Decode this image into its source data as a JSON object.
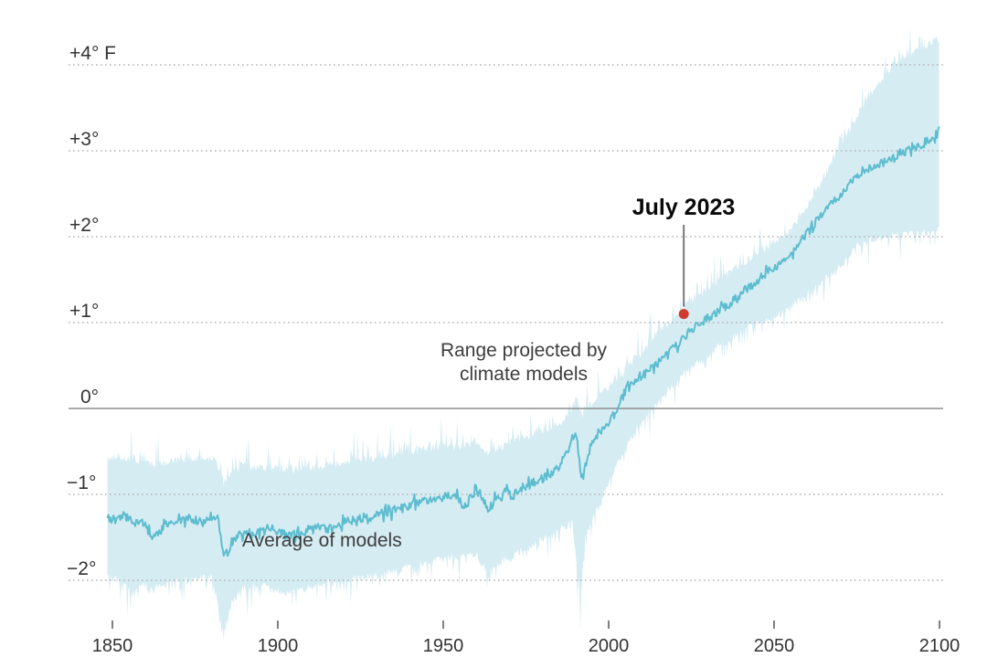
{
  "chart_data": {
    "type": "area",
    "title": "",
    "description": "Global temperature anomaly, observed July 2023 versus climate model projections, 1850-2100",
    "x_domain": [
      1848.5,
      2100
    ],
    "x_ticks": [
      {
        "value": 1850,
        "label": "1850"
      },
      {
        "value": 1900,
        "label": "1900"
      },
      {
        "value": 1950,
        "label": "1950"
      },
      {
        "value": 2000,
        "label": "2000"
      },
      {
        "value": 2050,
        "label": "2050"
      },
      {
        "value": 2100,
        "label": "2100"
      }
    ],
    "y_gridlines": [
      {
        "value": 4,
        "label": "+4° F",
        "style": "dotted"
      },
      {
        "value": 3,
        "label": "+3°",
        "style": "dotted"
      },
      {
        "value": 2,
        "label": "+2°",
        "style": "dotted"
      },
      {
        "value": 1,
        "label": "+1°",
        "style": "dotted"
      },
      {
        "value": 0,
        "label": "0°",
        "style": "solid"
      },
      {
        "value": -1,
        "label": "−1°",
        "style": "dotted"
      },
      {
        "value": -2,
        "label": "−2°",
        "style": "dotted"
      }
    ],
    "series": [
      {
        "name": "Average of models",
        "keypoints": [
          [
            1848.5,
            -1.28
          ],
          [
            1851,
            -1.3
          ],
          [
            1854,
            -1.26
          ],
          [
            1857,
            -1.33
          ],
          [
            1860,
            -1.36
          ],
          [
            1862,
            -1.52
          ],
          [
            1864,
            -1.44
          ],
          [
            1867,
            -1.33
          ],
          [
            1870,
            -1.3
          ],
          [
            1873,
            -1.27
          ],
          [
            1876,
            -1.31
          ],
          [
            1879,
            -1.28
          ],
          [
            1882,
            -1.31
          ],
          [
            1883.7,
            -1.74
          ],
          [
            1885,
            -1.66
          ],
          [
            1887,
            -1.5
          ],
          [
            1890,
            -1.43
          ],
          [
            1893,
            -1.47
          ],
          [
            1896,
            -1.39
          ],
          [
            1900,
            -1.42
          ],
          [
            1903,
            -1.49
          ],
          [
            1906,
            -1.45
          ],
          [
            1910,
            -1.42
          ],
          [
            1913,
            -1.37
          ],
          [
            1916,
            -1.41
          ],
          [
            1920,
            -1.33
          ],
          [
            1924,
            -1.29
          ],
          [
            1928,
            -1.25
          ],
          [
            1932,
            -1.21
          ],
          [
            1936,
            -1.19
          ],
          [
            1940,
            -1.12
          ],
          [
            1944,
            -1.08
          ],
          [
            1948,
            -1.05
          ],
          [
            1951,
            -1.0
          ],
          [
            1954,
            -1.02
          ],
          [
            1956.5,
            -1.15
          ],
          [
            1959,
            -1.0
          ],
          [
            1961,
            -0.98
          ],
          [
            1963.5,
            -1.18
          ],
          [
            1966,
            -1.06
          ],
          [
            1969,
            -0.97
          ],
          [
            1971,
            -1.02
          ],
          [
            1974,
            -0.92
          ],
          [
            1978,
            -0.86
          ],
          [
            1982,
            -0.78
          ],
          [
            1985,
            -0.68
          ],
          [
            1988,
            -0.45
          ],
          [
            1990,
            -0.25
          ],
          [
            1992,
            -0.85
          ],
          [
            1994,
            -0.5
          ],
          [
            1996,
            -0.32
          ],
          [
            1999,
            -0.2
          ],
          [
            2002,
            -0.05
          ],
          [
            2004,
            0.12
          ],
          [
            2006,
            0.28
          ],
          [
            2010,
            0.38
          ],
          [
            2014,
            0.5
          ],
          [
            2018,
            0.63
          ],
          [
            2023,
            0.85
          ],
          [
            2028,
            1.0
          ],
          [
            2032,
            1.1
          ],
          [
            2037,
            1.23
          ],
          [
            2042,
            1.4
          ],
          [
            2046,
            1.52
          ],
          [
            2050,
            1.63
          ],
          [
            2056,
            1.86
          ],
          [
            2060,
            2.05
          ],
          [
            2064,
            2.23
          ],
          [
            2068,
            2.42
          ],
          [
            2072,
            2.57
          ],
          [
            2076,
            2.74
          ],
          [
            2080,
            2.83
          ],
          [
            2084,
            2.87
          ],
          [
            2088,
            2.97
          ],
          [
            2092,
            3.03
          ],
          [
            2096,
            3.1
          ],
          [
            2100,
            3.24
          ]
        ]
      },
      {
        "name": "Range projected by climate models (upper edge)",
        "keypoints": [
          [
            1848.5,
            -0.6
          ],
          [
            1853,
            -0.58
          ],
          [
            1858,
            -0.62
          ],
          [
            1862,
            -0.68
          ],
          [
            1867,
            -0.63
          ],
          [
            1872,
            -0.6
          ],
          [
            1877,
            -0.58
          ],
          [
            1881,
            -0.6
          ],
          [
            1883.7,
            -0.88
          ],
          [
            1886,
            -0.73
          ],
          [
            1890,
            -0.67
          ],
          [
            1895,
            -0.7
          ],
          [
            1900,
            -0.71
          ],
          [
            1905,
            -0.72
          ],
          [
            1910,
            -0.7
          ],
          [
            1915,
            -0.67
          ],
          [
            1920,
            -0.64
          ],
          [
            1925,
            -0.61
          ],
          [
            1930,
            -0.58
          ],
          [
            1935,
            -0.56
          ],
          [
            1940,
            -0.51
          ],
          [
            1945,
            -0.48
          ],
          [
            1950,
            -0.45
          ],
          [
            1955,
            -0.45
          ],
          [
            1960,
            -0.4
          ],
          [
            1963.5,
            -0.52
          ],
          [
            1968,
            -0.44
          ],
          [
            1972,
            -0.38
          ],
          [
            1976,
            -0.33
          ],
          [
            1980,
            -0.27
          ],
          [
            1984,
            -0.2
          ],
          [
            1988,
            -0.08
          ],
          [
            1990.5,
            0.15
          ],
          [
            1992,
            -0.1
          ],
          [
            1995,
            0.05
          ],
          [
            1998,
            0.15
          ],
          [
            2002,
            0.3
          ],
          [
            2006,
            0.5
          ],
          [
            2010,
            0.65
          ],
          [
            2014,
            0.83
          ],
          [
            2018,
            0.98
          ],
          [
            2023,
            1.2
          ],
          [
            2028,
            1.33
          ],
          [
            2033,
            1.48
          ],
          [
            2037,
            1.6
          ],
          [
            2042,
            1.72
          ],
          [
            2046,
            1.82
          ],
          [
            2050,
            1.92
          ],
          [
            2055,
            2.05
          ],
          [
            2060,
            2.35
          ],
          [
            2065,
            2.68
          ],
          [
            2070,
            3.05
          ],
          [
            2075,
            3.4
          ],
          [
            2080,
            3.7
          ],
          [
            2085,
            3.95
          ],
          [
            2090,
            4.1
          ],
          [
            2095,
            4.2
          ],
          [
            2100,
            4.3
          ]
        ]
      },
      {
        "name": "Range projected by climate models (lower edge)",
        "keypoints": [
          [
            1848.5,
            -1.95
          ],
          [
            1853,
            -2.0
          ],
          [
            1856,
            -2.16
          ],
          [
            1859,
            -2.02
          ],
          [
            1862,
            -2.1
          ],
          [
            1866,
            -2.04
          ],
          [
            1870,
            -2.0
          ],
          [
            1875,
            -1.97
          ],
          [
            1880,
            -1.95
          ],
          [
            1883.7,
            -2.62
          ],
          [
            1886,
            -2.24
          ],
          [
            1890,
            -2.06
          ],
          [
            1895,
            -2.05
          ],
          [
            1900,
            -2.1
          ],
          [
            1903,
            -2.15
          ],
          [
            1907,
            -2.1
          ],
          [
            1911,
            -2.06
          ],
          [
            1915,
            -2.02
          ],
          [
            1920,
            -2.0
          ],
          [
            1925,
            -1.96
          ],
          [
            1930,
            -1.92
          ],
          [
            1935,
            -1.89
          ],
          [
            1940,
            -1.83
          ],
          [
            1945,
            -1.79
          ],
          [
            1950,
            -1.74
          ],
          [
            1955,
            -1.72
          ],
          [
            1960,
            -1.68
          ],
          [
            1963.5,
            -1.92
          ],
          [
            1968,
            -1.76
          ],
          [
            1972,
            -1.68
          ],
          [
            1976,
            -1.6
          ],
          [
            1980,
            -1.52
          ],
          [
            1985,
            -1.42
          ],
          [
            1989,
            -1.3
          ],
          [
            1991.5,
            -2.25
          ],
          [
            1993,
            -1.45
          ],
          [
            1996,
            -1.2
          ],
          [
            2000,
            -0.85
          ],
          [
            2004,
            -0.55
          ],
          [
            2008,
            -0.25
          ],
          [
            2012,
            -0.05
          ],
          [
            2016,
            0.12
          ],
          [
            2020,
            0.3
          ],
          [
            2024,
            0.45
          ],
          [
            2028,
            0.58
          ],
          [
            2033,
            0.72
          ],
          [
            2037,
            0.82
          ],
          [
            2042,
            0.95
          ],
          [
            2046,
            1.02
          ],
          [
            2050,
            1.08
          ],
          [
            2055,
            1.2
          ],
          [
            2060,
            1.35
          ],
          [
            2065,
            1.5
          ],
          [
            2070,
            1.65
          ],
          [
            2075,
            1.9
          ],
          [
            2080,
            1.98
          ],
          [
            2085,
            2.02
          ],
          [
            2090,
            2.04
          ],
          [
            2095,
            2.06
          ],
          [
            2100,
            2.08
          ]
        ]
      }
    ],
    "noise": {
      "seed": 20230723,
      "samples_per_year": 3.33,
      "mean_amp": 0.05,
      "mean_amp_big": 0.11,
      "mean_big_p": 0.15,
      "edge_base": 0.1,
      "edge_mid": 0.22,
      "edge_spike": 0.42,
      "edge_mid_p": 0.33,
      "edge_spike_p": 0.08,
      "edge_inset": 0.04
    },
    "annotations": {
      "july_2023": {
        "label": "July 2023",
        "year": 2022.7,
        "value": 1.1
      },
      "range_label": {
        "line1": "Range projected by",
        "line2": "climate models"
      },
      "average_label": {
        "text": "Average of models"
      }
    },
    "colors": {
      "band": "#d5ecf3",
      "line": "#5dbdcf",
      "dot": "#d13a2e",
      "grid_dotted": "#b4b4b4",
      "zero_line": "#8e8e8e",
      "tick": "#555555",
      "axis_text": "#333333",
      "annotation_text": "#3d3d3d",
      "connector": "#6b6b6b"
    }
  }
}
